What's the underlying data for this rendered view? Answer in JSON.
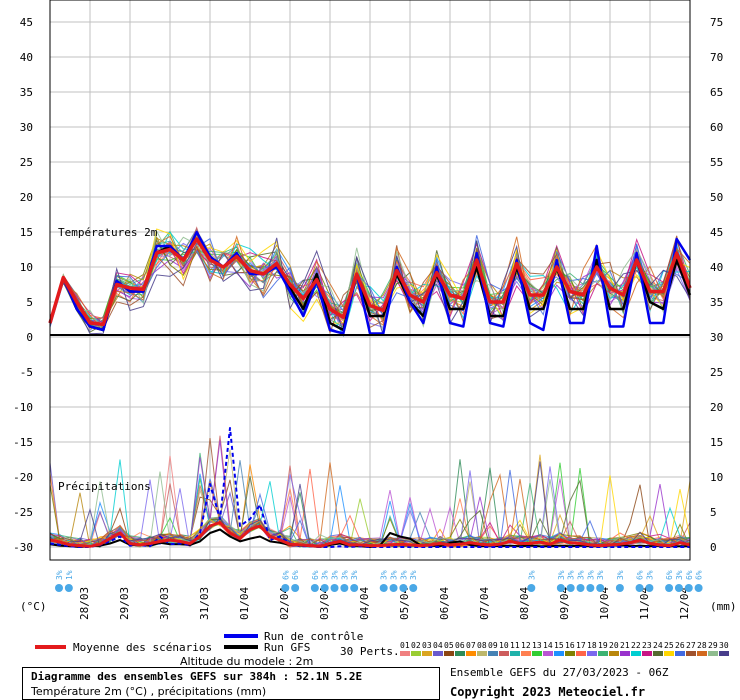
{
  "chart_data": {
    "type": "line",
    "left_axis": {
      "label": "(°C)",
      "ticks": [
        45,
        40,
        35,
        30,
        25,
        20,
        15,
        10,
        5,
        0,
        -5,
        -10,
        -15,
        -20,
        -25,
        -30
      ],
      "range": [
        -30,
        45
      ]
    },
    "right_axis": {
      "label": "(mm)",
      "ticks": [
        75,
        70,
        65,
        60,
        55,
        50,
        45,
        40,
        35,
        30,
        25,
        20,
        15,
        10,
        5,
        0
      ],
      "range": [
        0,
        75
      ]
    },
    "dates": [
      "28/03",
      "29/03",
      "30/03",
      "31/03",
      "01/04",
      "02/04",
      "03/04",
      "04/04",
      "05/04",
      "06/04",
      "07/04",
      "08/04",
      "09/04",
      "10/04",
      "11/04",
      "12/04"
    ],
    "temp_label": "Températures 2m",
    "precip_label": "Précipitations",
    "grid": true,
    "series": [
      {
        "name": "Moyenne des scénarios",
        "color": "#e31a1c",
        "temperature": [
          2,
          8.5,
          5,
          2,
          1.8,
          7.5,
          7,
          6.8,
          12,
          12.5,
          11,
          14,
          11,
          10,
          11.5,
          9.5,
          9,
          10.5,
          7.5,
          5.5,
          8.2,
          4,
          2.8,
          9,
          4.5,
          3.8,
          9.5,
          6,
          5,
          9.2,
          6,
          5.5,
          11,
          5,
          5,
          10.5,
          6,
          6,
          10,
          6.5,
          6,
          10,
          7,
          6,
          11,
          6.5,
          6.5,
          12,
          7
        ],
        "precip_mm": [
          1,
          0.7,
          0.3,
          0.2,
          0.1,
          0.4,
          1.2,
          2,
          0.5,
          0.3,
          0.5,
          0.8,
          1,
          0.8,
          0.5,
          1.5,
          3,
          3.5,
          2,
          1.2,
          2.5,
          3,
          1.5,
          1,
          0.4,
          0.3,
          0.2,
          0.1,
          0.5,
          0.8,
          0.3,
          0.3,
          0.2,
          0.2,
          0.3,
          0.4,
          0.3,
          0.2,
          0.3,
          0.5,
          0.3,
          0.4,
          0.6,
          0.4,
          0.3,
          0.4,
          0.8,
          0.5,
          0.5,
          0.7,
          0.4,
          1,
          0.6,
          0.5,
          0.3,
          0.2,
          0.3,
          0.4,
          0.6,
          1,
          0.5,
          0.3,
          0.2,
          0.6,
          0.3
        ]
      },
      {
        "name": "Run de contrôle",
        "color": "#0000ee",
        "temperature": [
          2,
          8.5,
          4,
          1.5,
          1,
          8,
          6.5,
          6.5,
          13,
          13,
          11,
          15,
          11.5,
          10,
          12,
          9,
          9,
          10,
          6.5,
          3,
          8,
          1,
          0.5,
          9,
          0.5,
          0.5,
          10,
          5,
          2,
          10,
          2,
          1.5,
          12,
          2,
          1.5,
          11,
          2,
          1,
          11,
          2,
          2,
          13,
          1.5,
          1.5,
          12,
          2,
          2,
          14,
          11
        ],
        "precip_mm": [
          0.5,
          0.3,
          0.1,
          0,
          0,
          0.3,
          0.8,
          1.5,
          0.2,
          0.3,
          0.1,
          1.5,
          0.4,
          0.5,
          0.3,
          2,
          9,
          4,
          17,
          3,
          4,
          6,
          1,
          1.5,
          0.5,
          0.1,
          0.1,
          0,
          0,
          0.1,
          0,
          0.1,
          0,
          0,
          0,
          0,
          0,
          0,
          0,
          0,
          0,
          0,
          0,
          0,
          0,
          0,
          0,
          0,
          0,
          0,
          0,
          0,
          0,
          0,
          0,
          0,
          0,
          0,
          0,
          0,
          0,
          0,
          0,
          0,
          0
        ]
      },
      {
        "name": "Run GFS",
        "color": "#000000",
        "temperature": [
          2,
          8.5,
          4,
          1.5,
          1,
          8,
          6.5,
          6.5,
          12,
          13,
          11,
          14,
          11,
          10,
          11.5,
          9.5,
          9,
          10.5,
          7,
          4,
          9,
          2,
          1,
          9,
          3,
          3,
          9,
          5,
          3,
          9,
          4,
          4,
          10,
          3,
          3,
          10,
          4,
          4,
          10,
          4,
          4,
          11,
          4,
          4,
          11,
          5,
          4,
          11,
          6
        ],
        "precip_mm": [
          0.4,
          0.2,
          0.1,
          0,
          0.1,
          0.2,
          0.5,
          1,
          0.3,
          0.3,
          0.2,
          0.6,
          0.4,
          0.4,
          0.3,
          0.8,
          2,
          2.5,
          1.5,
          0.8,
          1.2,
          1.5,
          0.8,
          0.6,
          0.3,
          0.2,
          0.1,
          0,
          0.3,
          0.5,
          0.2,
          0.1,
          0,
          0.2,
          2,
          1.5,
          1.2,
          0.3,
          0.2,
          0.1,
          0.6,
          0.8,
          0.3,
          0.1,
          0.2,
          0.1,
          0.2,
          0.1,
          0.2,
          0.1,
          0.1,
          0.2,
          0.1,
          0.2,
          0.1,
          0.1,
          0.2,
          0.3,
          0.1,
          0.2,
          0.1,
          0.2,
          0.1,
          0.1,
          0.1
        ]
      }
    ],
    "perturbation_count": 30,
    "perturbation_labels": [
      "01",
      "02",
      "03",
      "04",
      "05",
      "06",
      "07",
      "08",
      "09",
      "10",
      "11",
      "12",
      "13",
      "14",
      "15",
      "16",
      "17",
      "18",
      "19",
      "20",
      "21",
      "22",
      "23",
      "24",
      "25",
      "26",
      "27",
      "28",
      "29",
      "30"
    ],
    "perturbation_colors": [
      "#f08080",
      "#9acd32",
      "#daa520",
      "#6a5acd",
      "#8b4513",
      "#2e8b57",
      "#ff8c00",
      "#bdb76b",
      "#4682b4",
      "#cd5c5c",
      "#20b2aa",
      "#ff7f50",
      "#32cd32",
      "#ba55d3",
      "#1e90ff",
      "#808000",
      "#ff6347",
      "#7b68ee",
      "#3cb371",
      "#b8860b",
      "#9932cc",
      "#00ced1",
      "#c71585",
      "#556b2f",
      "#ffd700",
      "#4169e1",
      "#a0522d",
      "#d2691e",
      "#8fbc8f",
      "#483d8b"
    ],
    "snow_markers": [
      "3%",
      "1%",
      "6%",
      "6%",
      "6%",
      "3%",
      "3%",
      "3%",
      "3%",
      "3%",
      "3%",
      "3%",
      "3%",
      "3%",
      "3%",
      "3%",
      "3%",
      "3%",
      "3%",
      "3%",
      "6%",
      "3%",
      "6%",
      "3%",
      "6%",
      "6%"
    ]
  },
  "legend": {
    "mean": "Moyenne des scénarios",
    "control": "Run de contrôle",
    "gfs": "Run GFS",
    "perts": "30 Perts."
  },
  "footer": {
    "altitude": "Altitude du modele : 2m",
    "title": "Diagramme des ensembles GEFS sur 384h : 52.1N 5.2E",
    "subtitle": "Température 2m (°C) , précipitations (mm)",
    "ensemble_date": "Ensemble GEFS du 27/03/2023 - 06Z",
    "copyright": "Copyright 2023 Meteociel.fr"
  },
  "colors": {
    "mean": "#e31a1c",
    "control": "#0000ee",
    "gfs": "#000000",
    "grid": "#c0c0c0",
    "snow": "#4aa8e6"
  }
}
